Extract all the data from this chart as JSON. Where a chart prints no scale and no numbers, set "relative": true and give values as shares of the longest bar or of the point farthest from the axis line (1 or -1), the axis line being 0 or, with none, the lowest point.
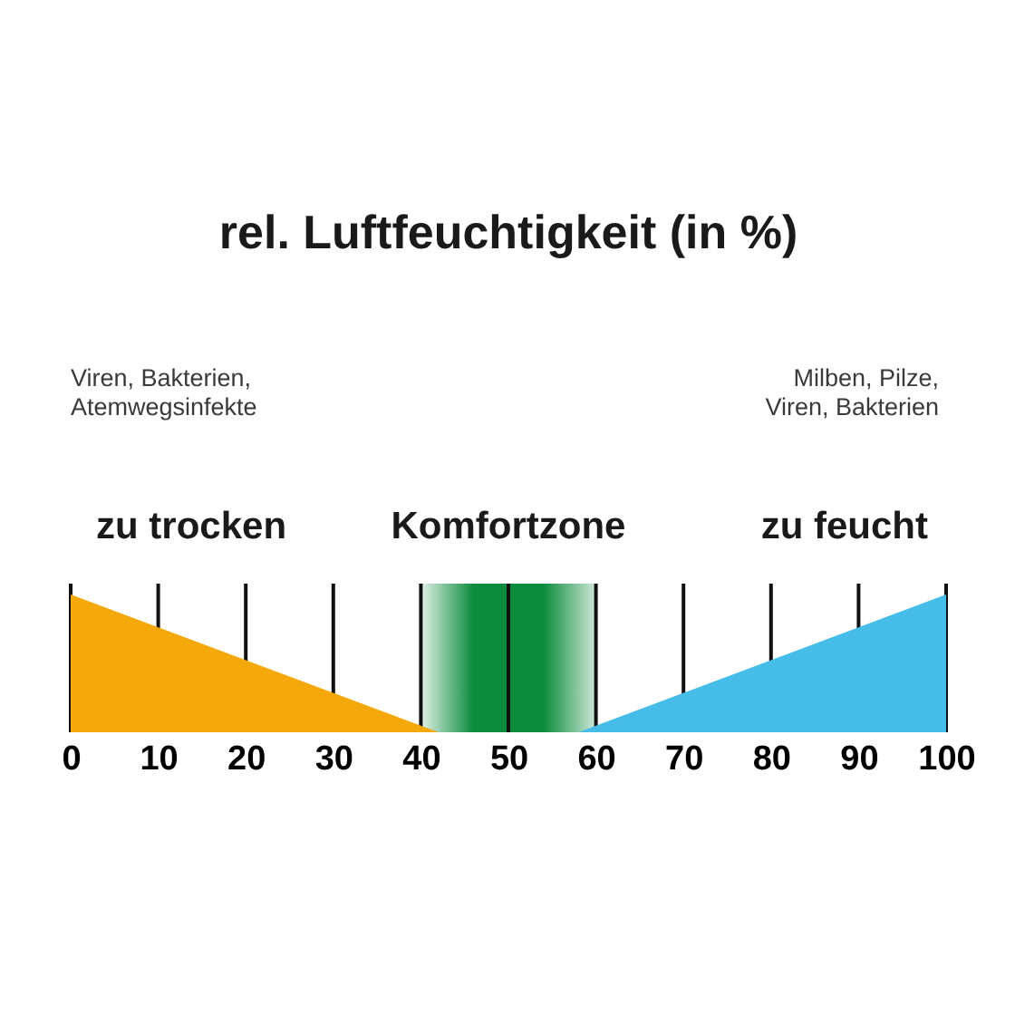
{
  "chart_data": {
    "type": "area",
    "title": "rel. Luftfeuchtigkeit (in %)",
    "relative": true,
    "xlim": [
      0,
      100
    ],
    "xticks": [
      0,
      10,
      20,
      30,
      40,
      50,
      60,
      70,
      80,
      90,
      100
    ],
    "grid": "x",
    "series": [
      {
        "name": "zu trocken",
        "color": "#f4a80c",
        "x": [
          0,
          42
        ],
        "values": [
          1,
          0
        ]
      },
      {
        "name": "zu feucht",
        "color": "#46bde9",
        "x": [
          58,
          100
        ],
        "values": [
          0,
          1
        ]
      }
    ],
    "bands": [
      {
        "axis": "x",
        "from": 40,
        "to": 60,
        "label": "Komfortzone",
        "color": "#0b8c3c"
      }
    ],
    "annotations": [
      "Viren, Bakterien,\nAtemwegsinfekte",
      "Milben, Pilze,\nViren, Bakterien"
    ]
  }
}
